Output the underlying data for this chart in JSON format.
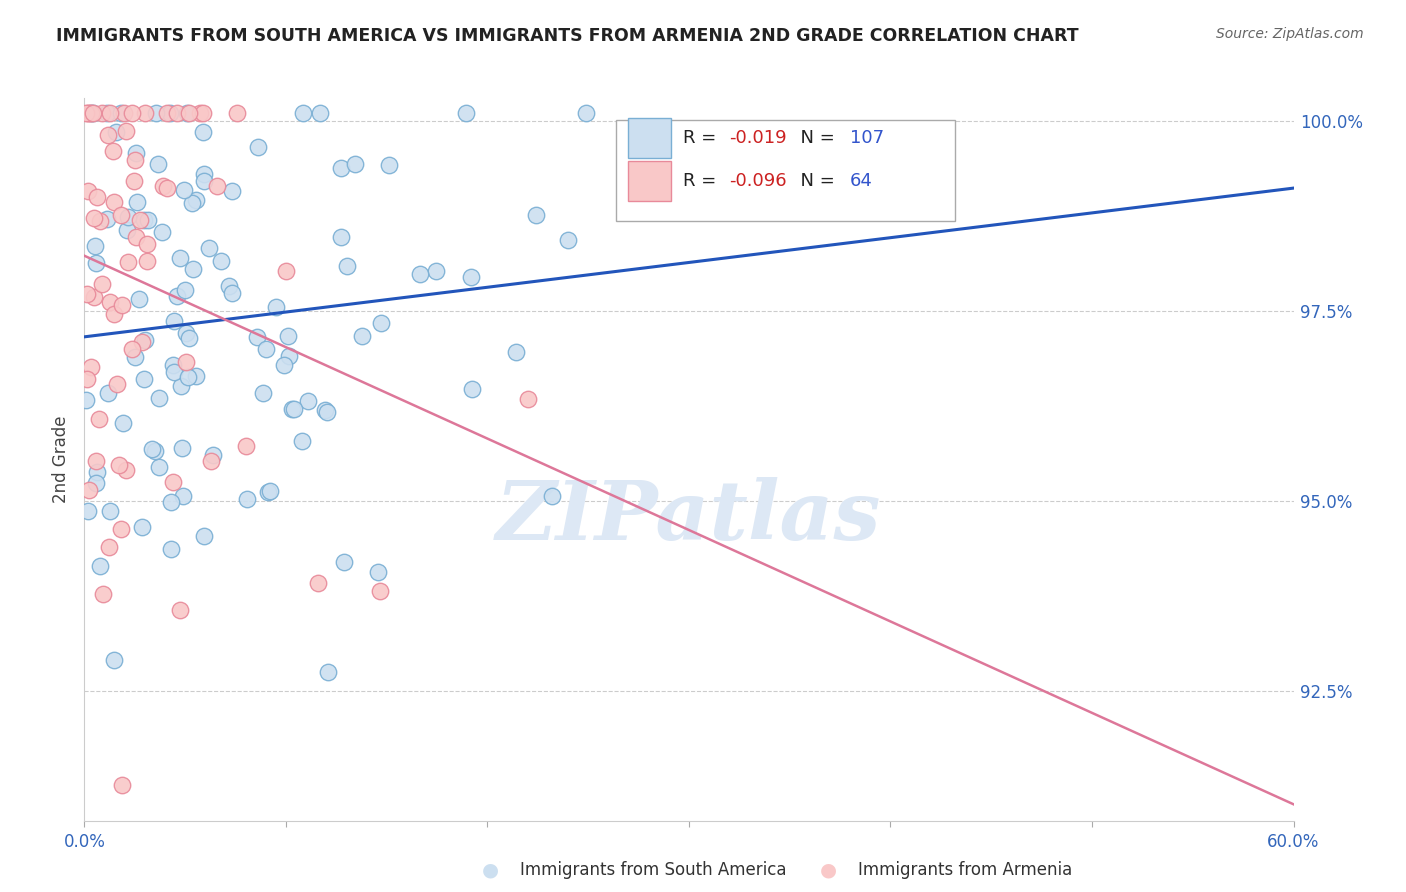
{
  "title": "IMMIGRANTS FROM SOUTH AMERICA VS IMMIGRANTS FROM ARMENIA 2ND GRADE CORRELATION CHART",
  "source": "Source: ZipAtlas.com",
  "xlabel_blue": "Immigrants from South America",
  "xlabel_pink": "Immigrants from Armenia",
  "ylabel": "2nd Grade",
  "xlim": [
    0.0,
    0.6
  ],
  "ylim": [
    0.908,
    1.003
  ],
  "yticks": [
    0.925,
    0.95,
    0.975,
    1.0
  ],
  "ytick_labels": [
    "92.5%",
    "95.0%",
    "97.5%",
    "100.0%"
  ],
  "R_blue": -0.019,
  "N_blue": 107,
  "R_pink": -0.096,
  "N_pink": 64,
  "blue_fill": "#ccdff0",
  "blue_edge": "#7aafd4",
  "pink_fill": "#f9c8c8",
  "pink_edge": "#e88a9a",
  "trend_blue": "#2255bb",
  "trend_pink": "#dd7799",
  "grid_color": "#cccccc",
  "axis_color": "#3366bb",
  "watermark_color": "#dde8f5",
  "title_color": "#222222",
  "source_color": "#666666"
}
